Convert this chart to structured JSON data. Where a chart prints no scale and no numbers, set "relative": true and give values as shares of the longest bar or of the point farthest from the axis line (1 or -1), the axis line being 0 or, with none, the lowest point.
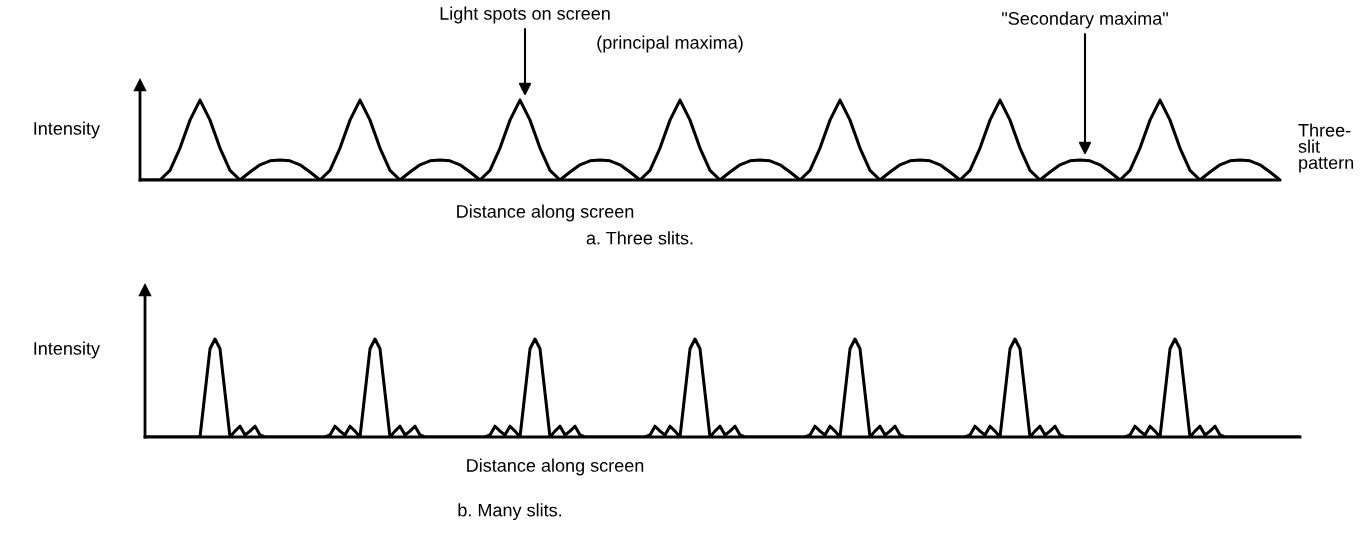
{
  "chart_data": [
    {
      "type": "line",
      "relative": true,
      "title": "a. Three slits.",
      "xlabel": "Distance along screen",
      "ylabel": "Intensity",
      "annotations": [
        "Light spots on screen",
        "(principal maxima)",
        "\"Secondary maxima\"",
        "Three-\nslit\npattern"
      ],
      "categories": [
        null,
        null,
        null,
        null,
        null,
        null,
        null,
        null,
        null,
        null,
        null,
        null,
        null,
        null,
        null,
        null,
        null,
        null,
        null,
        null,
        null,
        null,
        null,
        null,
        null,
        null,
        null,
        null,
        null,
        null,
        null,
        null,
        null,
        null,
        null,
        null,
        null,
        null,
        null,
        null,
        null,
        null,
        null,
        null,
        null,
        null,
        null,
        null,
        null,
        null,
        null,
        null,
        null,
        null,
        null,
        null,
        null,
        null,
        null,
        null,
        null,
        null,
        null,
        null,
        null,
        null,
        null,
        null,
        null,
        null,
        null,
        null,
        null,
        null,
        null,
        null,
        null,
        null,
        null,
        null,
        null,
        null,
        null,
        null,
        null,
        null,
        null,
        null,
        null,
        null,
        null,
        null,
        null,
        null,
        null,
        null,
        null,
        null,
        null,
        null,
        null,
        null,
        null,
        null,
        null,
        null,
        null,
        null,
        null,
        null,
        null,
        null,
        null,
        null,
        null
      ],
      "series": [
        {
          "color": "#000000",
          "values": [
            0,
            0,
            0,
            0.12,
            0.4,
            0.75,
            1,
            0.75,
            0.4,
            0.12,
            0,
            0.1,
            0.19,
            0.24,
            0.25,
            0.24,
            0.19,
            0.1,
            0,
            0.12,
            0.4,
            0.75,
            1,
            0.75,
            0.4,
            0.12,
            0,
            0.1,
            0.19,
            0.24,
            0.25,
            0.24,
            0.19,
            0.1,
            0,
            0.12,
            0.4,
            0.75,
            1,
            0.75,
            0.4,
            0.12,
            0,
            0.1,
            0.19,
            0.24,
            0.25,
            0.24,
            0.19,
            0.1,
            0,
            0.12,
            0.4,
            0.75,
            1,
            0.75,
            0.4,
            0.12,
            0,
            0.1,
            0.19,
            0.24,
            0.25,
            0.24,
            0.19,
            0.1,
            0,
            0.12,
            0.4,
            0.75,
            1,
            0.75,
            0.4,
            0.12,
            0,
            0.1,
            0.19,
            0.24,
            0.25,
            0.24,
            0.19,
            0.1,
            0,
            0.12,
            0.4,
            0.75,
            1,
            0.75,
            0.4,
            0.12,
            0,
            0.1,
            0.19,
            0.24,
            0.25,
            0.24,
            0.19,
            0.1,
            0,
            0.12,
            0.4,
            0.75,
            1,
            0.75,
            0.4,
            0.12,
            0,
            0.1,
            0.19,
            0.24,
            0.25,
            0.24,
            0.19,
            0.1,
            0
          ]
        }
      ]
    },
    {
      "type": "line",
      "relative": true,
      "title": "b. Many slits.",
      "xlabel": "Distance along screen",
      "ylabel": "Intensity",
      "categories": [
        null,
        null,
        null,
        null,
        null,
        null,
        null,
        null,
        null,
        null,
        null,
        null,
        null,
        null,
        null,
        null,
        null,
        null,
        null,
        null,
        null,
        null,
        null,
        null,
        null,
        null,
        null,
        null,
        null,
        null,
        null,
        null,
        null,
        null,
        null,
        null,
        null,
        null,
        null,
        null,
        null,
        null,
        null,
        null,
        null,
        null,
        null,
        null,
        null,
        null,
        null,
        null,
        null,
        null,
        null,
        null,
        null,
        null,
        null,
        null,
        null,
        null,
        null,
        null,
        null,
        null,
        null,
        null,
        null,
        null,
        null,
        null,
        null,
        null,
        null,
        null,
        null,
        null,
        null,
        null,
        null,
        null,
        null,
        null,
        null,
        null,
        null,
        null,
        null,
        null,
        null,
        null,
        null,
        null,
        null,
        null,
        null,
        null,
        null,
        null,
        null,
        null,
        null,
        null,
        null,
        null,
        null,
        null,
        null,
        null,
        null,
        null,
        null,
        null,
        null,
        null,
        null,
        null,
        null,
        null,
        null,
        null,
        null,
        null,
        null,
        null,
        null,
        null,
        null,
        null,
        null,
        null,
        null,
        null,
        null,
        null,
        null,
        null,
        null,
        null,
        null,
        null,
        null,
        null,
        null,
        null,
        null,
        null,
        null,
        null,
        null,
        null,
        null,
        null,
        null,
        null,
        null,
        null,
        null,
        null,
        null,
        null,
        null,
        null,
        null,
        null,
        null,
        null,
        null,
        null,
        null,
        null,
        null,
        null,
        null,
        null,
        null,
        null,
        null,
        null,
        null,
        null,
        null,
        null,
        null,
        null,
        null,
        null,
        null,
        null,
        null,
        null,
        null,
        null,
        null,
        null,
        null,
        null,
        null,
        null,
        null,
        null,
        null,
        null,
        null,
        null,
        null,
        null,
        null,
        null,
        null,
        null,
        null,
        null,
        null,
        null,
        null,
        null,
        null,
        null,
        null,
        null,
        null,
        null,
        null,
        null,
        null,
        null,
        null,
        null,
        null,
        null
      ],
      "series": [
        {
          "color": "#000000",
          "values": [
            0,
            0,
            0,
            0,
            0,
            0,
            0,
            0,
            0,
            0,
            0,
            0,
            0.45,
            0.9,
            1,
            0.9,
            0.45,
            0,
            0.06,
            0.11,
            0.02,
            0.06,
            0.11,
            0.02,
            0,
            0,
            0,
            0,
            0,
            0,
            0,
            0,
            0,
            0,
            0,
            0,
            0,
            0.02,
            0.11,
            0.06,
            0.02,
            0.11,
            0.06,
            0,
            0.45,
            0.9,
            1,
            0.9,
            0.45,
            0,
            0.06,
            0.11,
            0.02,
            0.06,
            0.11,
            0.02,
            0,
            0,
            0,
            0,
            0,
            0,
            0,
            0,
            0,
            0,
            0,
            0,
            0,
            0.02,
            0.11,
            0.06,
            0.02,
            0.11,
            0.06,
            0,
            0.45,
            0.9,
            1,
            0.9,
            0.45,
            0,
            0.06,
            0.11,
            0.02,
            0.06,
            0.11,
            0.02,
            0,
            0,
            0,
            0,
            0,
            0,
            0,
            0,
            0,
            0,
            0,
            0,
            0,
            0.02,
            0.11,
            0.06,
            0.02,
            0.11,
            0.06,
            0,
            0.45,
            0.9,
            1,
            0.9,
            0.45,
            0,
            0.06,
            0.11,
            0.02,
            0.06,
            0.11,
            0.02,
            0,
            0,
            0,
            0,
            0,
            0,
            0,
            0,
            0,
            0,
            0,
            0,
            0,
            0.02,
            0.11,
            0.06,
            0.02,
            0.11,
            0.06,
            0,
            0.45,
            0.9,
            1,
            0.9,
            0.45,
            0,
            0.06,
            0.11,
            0.02,
            0.06,
            0.11,
            0.02,
            0,
            0,
            0,
            0,
            0,
            0,
            0,
            0,
            0,
            0,
            0,
            0,
            0,
            0.02,
            0.11,
            0.06,
            0.02,
            0.11,
            0.06,
            0,
            0.45,
            0.9,
            1,
            0.9,
            0.45,
            0,
            0.06,
            0.11,
            0.02,
            0.06,
            0.11,
            0.02,
            0,
            0,
            0,
            0,
            0,
            0,
            0,
            0,
            0,
            0,
            0,
            0,
            0,
            0.02,
            0.11,
            0.06,
            0.02,
            0.11,
            0.06,
            0,
            0.45,
            0.9,
            1,
            0.9,
            0.45,
            0,
            0.06,
            0.11,
            0.02,
            0.06,
            0.11,
            0.02,
            0,
            0,
            0,
            0,
            0,
            0,
            0,
            0,
            0,
            0,
            0,
            0,
            0,
            0,
            0,
            0
          ]
        }
      ]
    }
  ]
}
